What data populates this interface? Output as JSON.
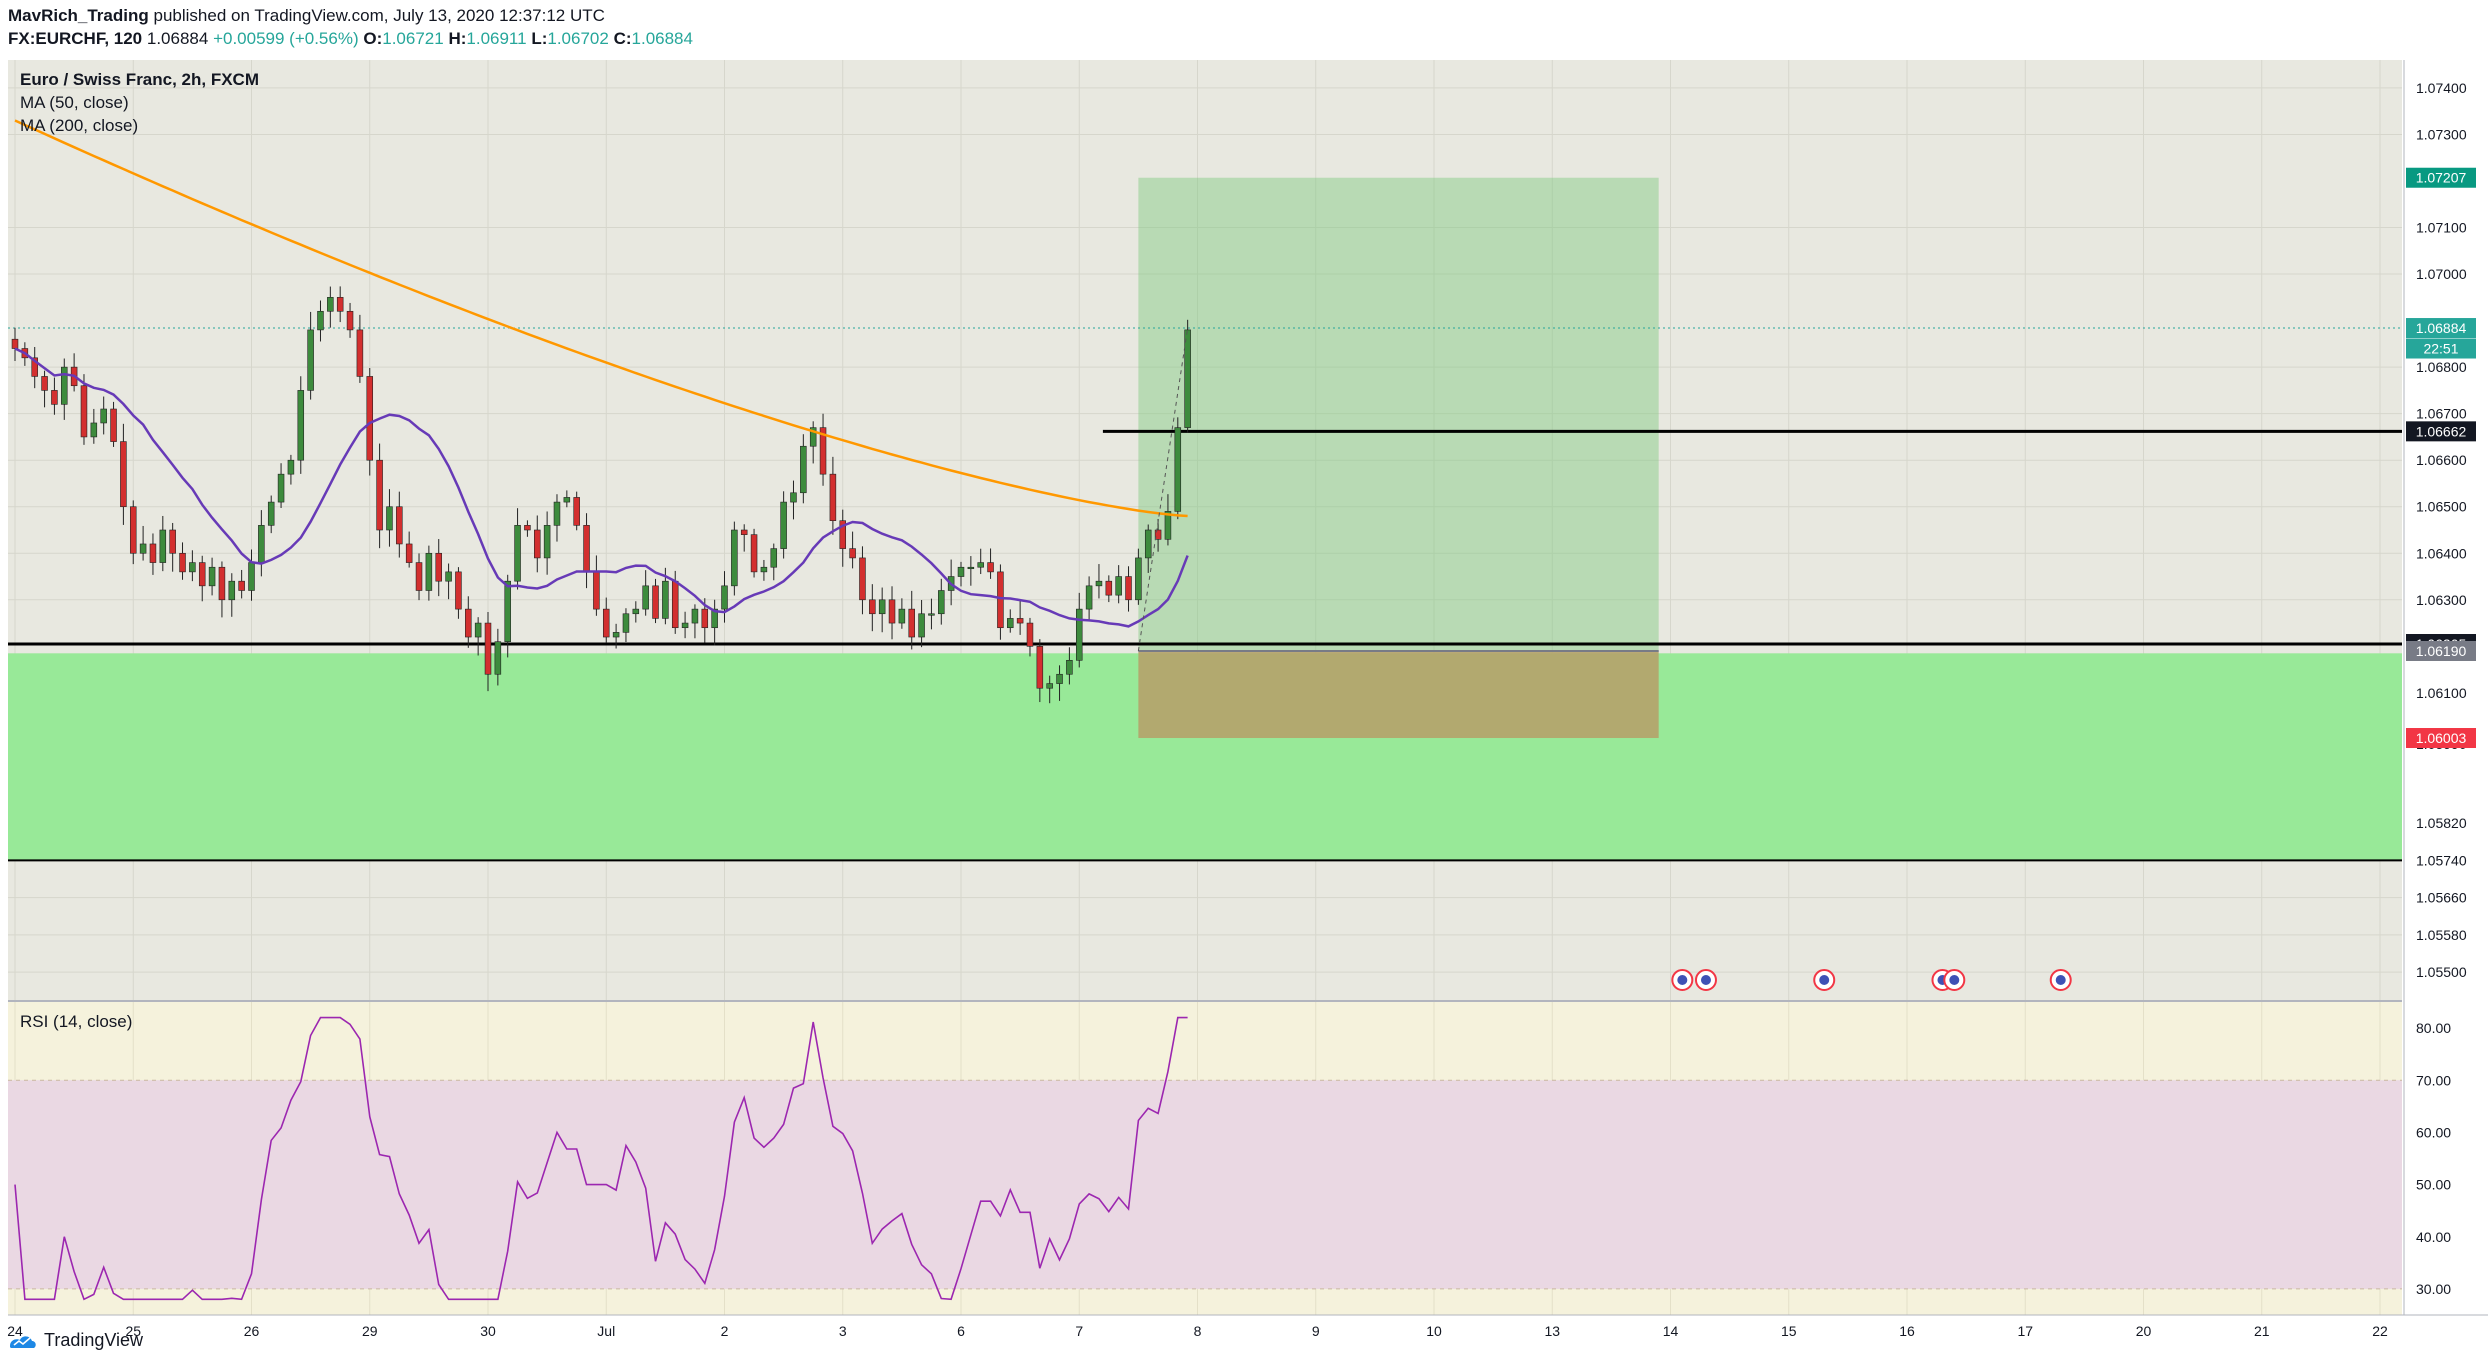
{
  "header": {
    "line1_author": "MavRich_Trading",
    "line1_rest": " published on TradingView.com, July 13, 2020 12:37:12 UTC",
    "symbol": "FX:EURCHF, 120",
    "last": "1.06884",
    "change": "+0.00599 (+0.56%)",
    "o_label": "O:",
    "o_value": "1.06721",
    "h_label": "H:",
    "h_value": "1.06911",
    "l_label": "L:",
    "l_value": "1.06702",
    "c_label": "C:",
    "c_value": "1.06884"
  },
  "legend": {
    "title": "Euro / Swiss Franc, 2h, FXCM",
    "ma50": "MA (50, close)",
    "ma200": "MA (200, close)",
    "rsi": "RSI (14, close)"
  },
  "footer": {
    "brand": "TradingView"
  },
  "colors": {
    "bull": "#26a69a",
    "bear": "#ef5350",
    "candle_up": "#3d8b3d",
    "candle_down": "#d32f2f",
    "ma50": "#673ab7",
    "ma200": "#ff9800",
    "rsi": "#9c27b0",
    "zone": "#98e998",
    "target": "#7fc97f",
    "stop": "#b5a26a"
  },
  "chart_data": {
    "type": "candlestick",
    "y_axis": {
      "min": 1.0544,
      "max": 1.0746,
      "ticks": [
        "1.07400",
        "1.07300",
        "1.07100",
        "1.07000",
        "1.06800",
        "1.06700",
        "1.06600",
        "1.06500",
        "1.06400",
        "1.06300",
        "1.06100",
        "1.05990",
        "1.05820",
        "1.05740",
        "1.05660",
        "1.05580",
        "1.05500"
      ]
    },
    "x_axis": {
      "ticks": [
        "24",
        "25",
        "26",
        "29",
        "30",
        "Jul",
        "2",
        "3",
        "6",
        "7",
        "8",
        "9",
        "10",
        "13",
        "14",
        "15",
        "16",
        "17",
        "20",
        "21",
        "22"
      ]
    },
    "price_labels": [
      {
        "value": "1.07207",
        "price": 1.07207,
        "color": "#089981"
      },
      {
        "value": "1.06884",
        "price": 1.06884,
        "color": "#26a69a"
      },
      {
        "value": "22:51",
        "price": 1.0684,
        "color": "#26a69a"
      },
      {
        "value": "1.06662",
        "price": 1.06662,
        "color": "#131722"
      },
      {
        "value": "1.06205",
        "price": 1.06205,
        "color": "#131722"
      },
      {
        "value": "1.06190",
        "price": 1.0619,
        "color": "#787b86"
      },
      {
        "value": "1.06003",
        "price": 1.06003,
        "color": "#f23645"
      }
    ],
    "horizontal_lines": [
      1.06662,
      1.06205,
      1.0574
    ],
    "support_zone": [
      1.0574,
      1.06185
    ],
    "position": {
      "entry": 1.0619,
      "target": 1.07207,
      "stop": 1.06003,
      "start_day": 9.5,
      "end_day": 13.9
    },
    "last_price": 1.06884,
    "candles_per_day": 12,
    "ohlc_path": [
      1.0684,
      1.0682,
      1.0678,
      1.0675,
      1.0672,
      1.068,
      1.0676,
      1.0665,
      1.0668,
      1.0671,
      1.0664,
      1.065,
      1.064,
      1.0642,
      1.0638,
      1.0645,
      1.064,
      1.0636,
      1.0638,
      1.0633,
      1.0637,
      1.063,
      1.0634,
      1.0632,
      1.0638,
      1.0646,
      1.0651,
      1.0657,
      1.066,
      1.0675,
      1.0688,
      1.0692,
      1.0695,
      1.0692,
      1.0688,
      1.0678,
      1.066,
      1.0645,
      1.065,
      1.0642,
      1.0638,
      1.0632,
      1.064,
      1.0634,
      1.0636,
      1.0628,
      1.0622,
      1.0625,
      1.0614,
      1.0621,
      1.0634,
      1.0646,
      1.0645,
      1.0639,
      1.0646,
      1.0651,
      1.0652,
      1.0646,
      1.0636,
      1.0628,
      1.0622,
      1.0623,
      1.0627,
      1.0628,
      1.0633,
      1.0626,
      1.0634,
      1.0624,
      1.0625,
      1.0628,
      1.0624,
      1.0628,
      1.0633,
      1.0645,
      1.0644,
      1.0636,
      1.0637,
      1.0641,
      1.0651,
      1.0653,
      1.0663,
      1.0667,
      1.0657,
      1.0647,
      1.0641,
      1.0639,
      1.063,
      1.0627,
      1.063,
      1.0625,
      1.0628,
      1.0622,
      1.0627,
      1.0627,
      1.0632,
      1.0635,
      1.0637,
      1.0637,
      1.0638,
      1.0636,
      1.0624,
      1.0626,
      1.0625,
      1.062,
      1.0611,
      1.0612,
      1.0614,
      1.0617,
      1.0628,
      1.0633,
      1.0634,
      1.0631,
      1.0635,
      1.063,
      1.0639,
      1.0645,
      1.0643,
      1.0649,
      1.0667,
      1.0688
    ],
    "rsi": {
      "min": 25,
      "max": 85,
      "ticks": [
        "80.00",
        "70.00",
        "60.00",
        "50.00",
        "40.00",
        "30.00"
      ],
      "band": [
        30,
        70
      ]
    }
  }
}
